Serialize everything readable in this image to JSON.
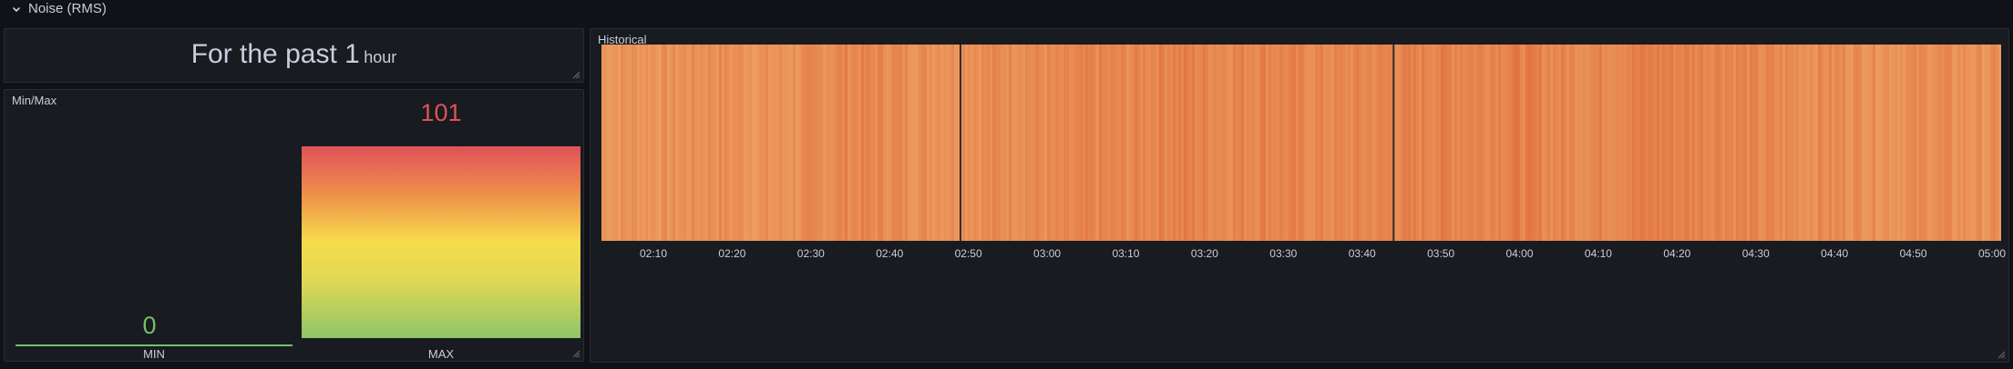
{
  "row": {
    "title": "Noise (RMS)"
  },
  "text_panel": {
    "prefix": "For the past ",
    "number": "1",
    "unit": "hour"
  },
  "minmax_panel": {
    "title": "Min/Max",
    "min": {
      "label": "MIN",
      "value": "0",
      "color": "#73bf69"
    },
    "max": {
      "label": "MAX",
      "value": "101",
      "color": "#e0515a"
    }
  },
  "historical_panel": {
    "title": "Historical"
  },
  "chart_data": {
    "type": "heatmap",
    "title": "Historical",
    "x_ticks": [
      "02:10",
      "02:20",
      "02:30",
      "02:40",
      "02:50",
      "03:00",
      "03:10",
      "03:20",
      "03:30",
      "03:40",
      "03:50",
      "04:00",
      "04:10",
      "04:20",
      "04:30",
      "04:40",
      "04:50",
      "05:00"
    ],
    "x_range": [
      "02:00",
      "05:00"
    ],
    "colors": {
      "low": "#f0a86a",
      "high": "#e07040"
    },
    "dark_lines_at": [
      "02:49",
      "03:44"
    ],
    "intensity": [
      0.35,
      0.4,
      0.38,
      0.5,
      0.42,
      0.36,
      0.45,
      0.62,
      0.55,
      0.5,
      0.48,
      0.52,
      0.58,
      0.46,
      0.6,
      0.55,
      0.72,
      0.65,
      0.6,
      0.68,
      0.58,
      0.55,
      0.6,
      0.64,
      0.7,
      0.66,
      0.75,
      0.62,
      0.58,
      0.66,
      0.74,
      0.7,
      0.68,
      0.55,
      0.5,
      0.52,
      0.48,
      0.45,
      0.5,
      0.42,
      0.4
    ]
  }
}
